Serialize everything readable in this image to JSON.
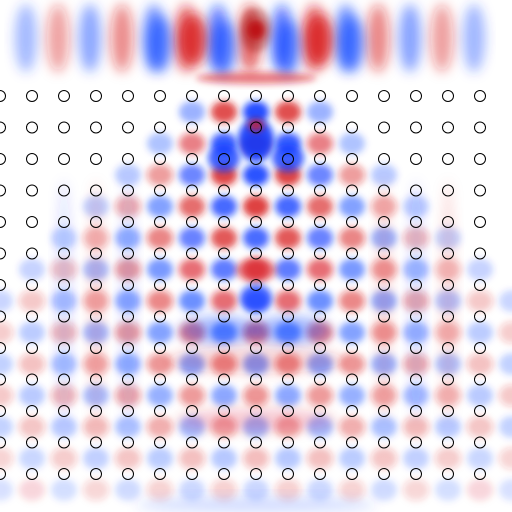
{
  "figure": {
    "description_type": "wave field simulation over photonic crystal lattice",
    "colormap": {
      "positive": "#d7191c",
      "zero": "#ffffff",
      "negative": "#0b3cff"
    },
    "lattice": {
      "rows": 13,
      "cols": 16,
      "marker_stroke": "#000000",
      "marker_fill": "none"
    }
  }
}
